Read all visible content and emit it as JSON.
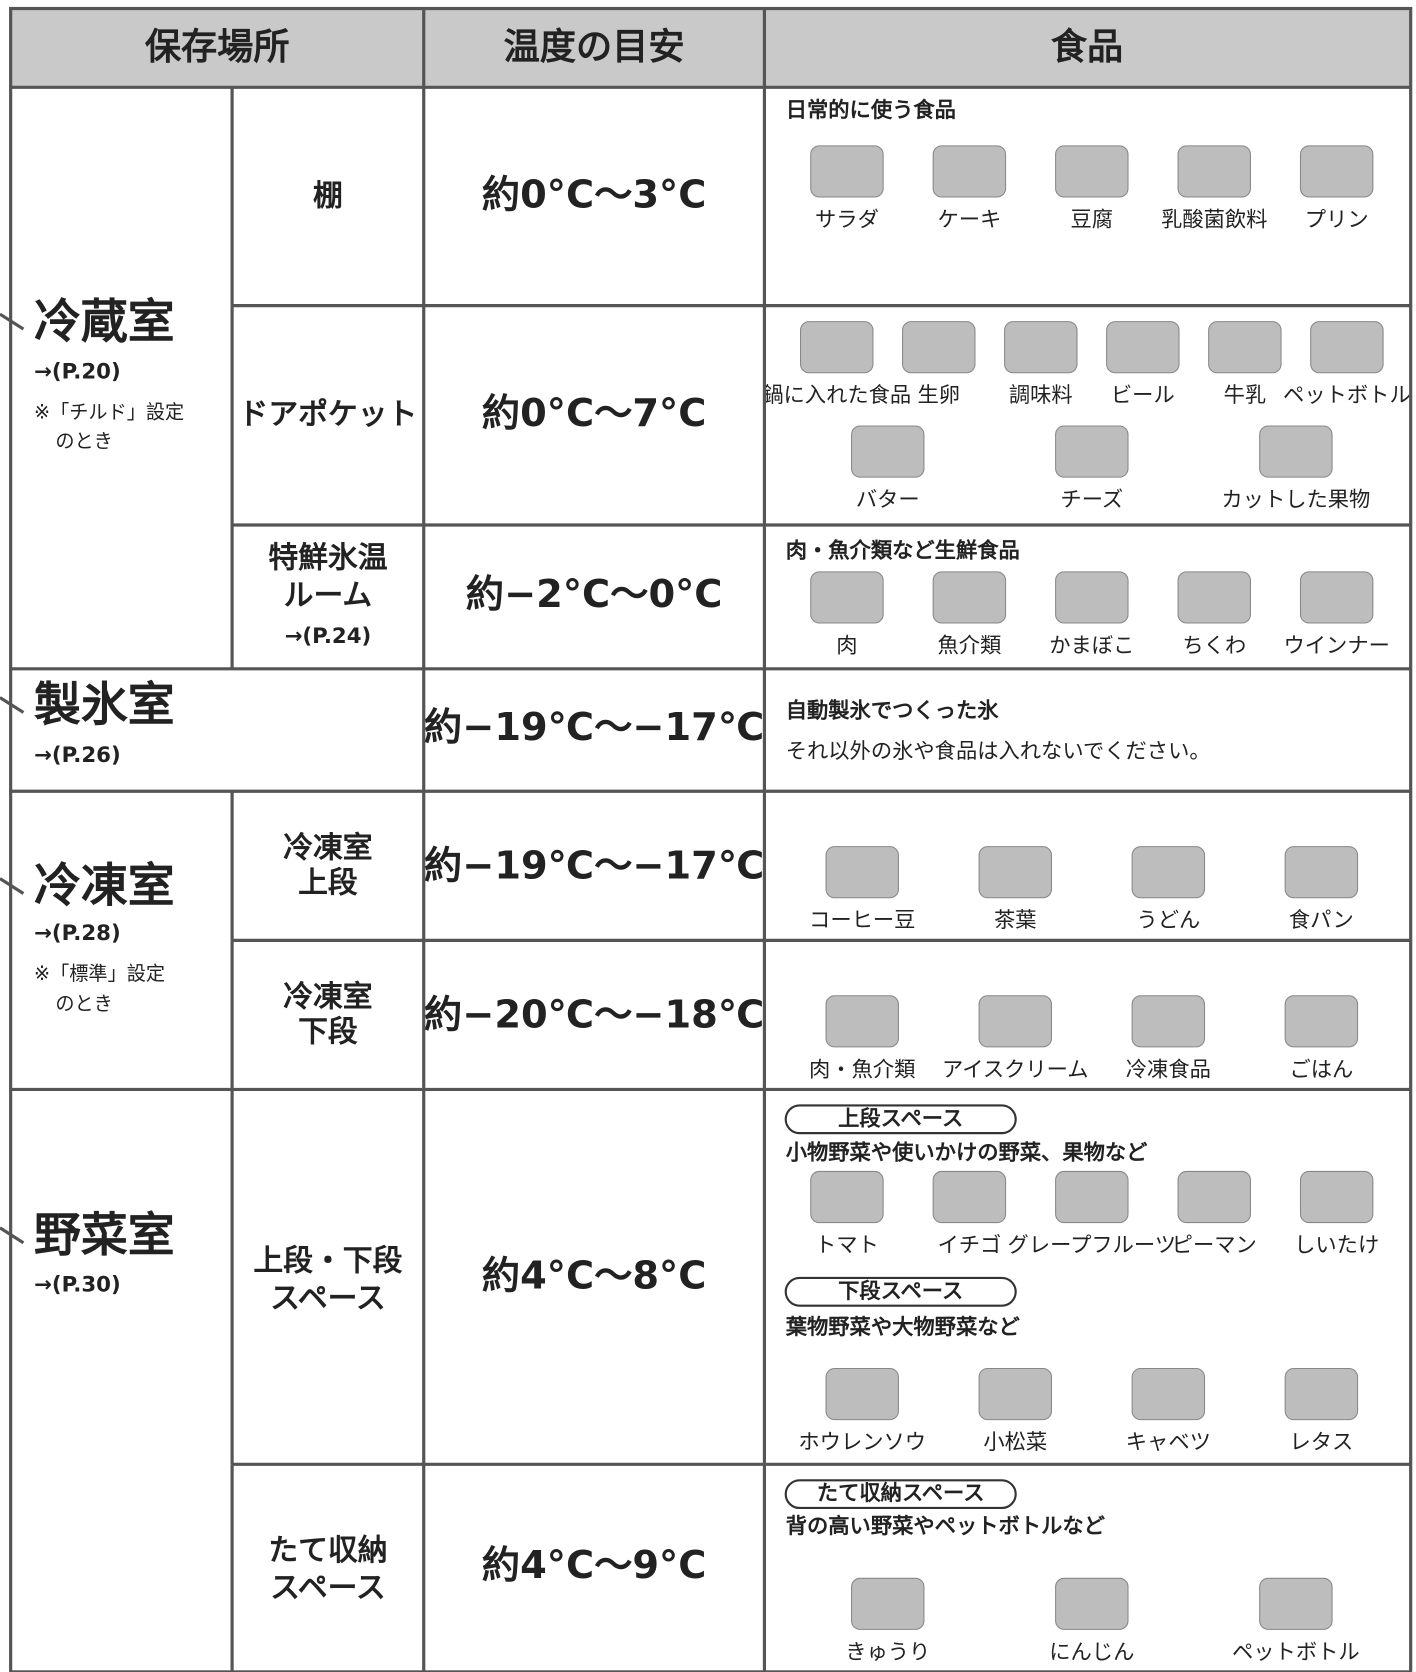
{
  "header": {
    "location": "保存場所",
    "temperature": "温度の目安",
    "foods": "食品"
  },
  "compartments": [
    {
      "name": "冷蔵室",
      "page": "→(P.20)",
      "note": [
        "※「チルド」設定",
        "のとき"
      ],
      "rows": [
        {
          "shelf": [
            "棚"
          ],
          "temperature": "約0°C〜3°C",
          "blocks": [
            {
              "heading": "日常的に使う食品",
              "items": [
                "サラダ",
                "ケーキ",
                "豆腐",
                "乳酸菌飲料",
                "プリン"
              ]
            }
          ]
        },
        {
          "shelf": [
            "ドアポケット"
          ],
          "temperature": "約0°C〜7°C",
          "blocks": [
            {
              "items": [
                "鍋に入れた食品",
                "生卵",
                "調味料",
                "ビール",
                "牛乳",
                "ペットボトル"
              ]
            },
            {
              "items": [
                "バター",
                "チーズ",
                "カットした果物"
              ]
            }
          ]
        },
        {
          "shelf": [
            "特鮮氷温",
            "ルーム",
            "→(P.24)"
          ],
          "temperature": "約−2°C〜0°C",
          "blocks": [
            {
              "heading": "肉・魚介類など生鮮食品",
              "items": [
                "肉",
                "魚介類",
                "かまぼこ",
                "ちくわ",
                "ウインナー"
              ]
            }
          ]
        }
      ]
    },
    {
      "name": "製氷室",
      "page": "→(P.26)",
      "rows": [
        {
          "temperature": "約−19℃〜−17℃",
          "blocks": [
            {
              "heading": "自動製氷でつくった氷",
              "text": "それ以外の氷や食品は入れないでください。"
            }
          ]
        }
      ]
    },
    {
      "name": "冷凍室",
      "page": "→(P.28)",
      "note": [
        "※「標準」設定",
        "のとき"
      ],
      "rows": [
        {
          "shelf": [
            "冷凍室",
            "上段"
          ],
          "temperature": "約−19℃〜−17℃",
          "blocks": [
            {
              "items": [
                "コーヒー豆",
                "茶葉",
                "うどん",
                "食パン"
              ]
            }
          ]
        },
        {
          "shelf": [
            "冷凍室",
            "下段"
          ],
          "temperature": "約−20℃〜−18℃",
          "blocks": [
            {
              "items": [
                "肉・魚介類",
                "アイスクリーム",
                "冷凍食品",
                "ごはん"
              ]
            }
          ]
        }
      ]
    },
    {
      "name": "野菜室",
      "page": "→(P.30)",
      "rows": [
        {
          "shelf": [
            "上段・下段",
            "スペース"
          ],
          "temperature": "約4°C〜8°C",
          "blocks": [
            {
              "tag": "上段スペース",
              "heading": "小物野菜や使いかけの野菜、果物など",
              "items": [
                "トマト",
                "イチゴ",
                "グレープフルーツ",
                "ピーマン",
                "しいたけ"
              ]
            },
            {
              "tag": "下段スペース",
              "heading": "葉物野菜や大物野菜など",
              "items": [
                "ホウレンソウ",
                "小松菜",
                "キャベツ",
                "レタス"
              ]
            }
          ]
        },
        {
          "shelf": [
            "たて収納",
            "スペース"
          ],
          "temperature": "約4°C〜9°C",
          "blocks": [
            {
              "tag": "たて収納スペース",
              "heading": "背の高い野菜やペットボトルなど",
              "items": [
                "きゅうり",
                "にんじん",
                "ペットボトル"
              ]
            }
          ]
        }
      ]
    }
  ]
}
